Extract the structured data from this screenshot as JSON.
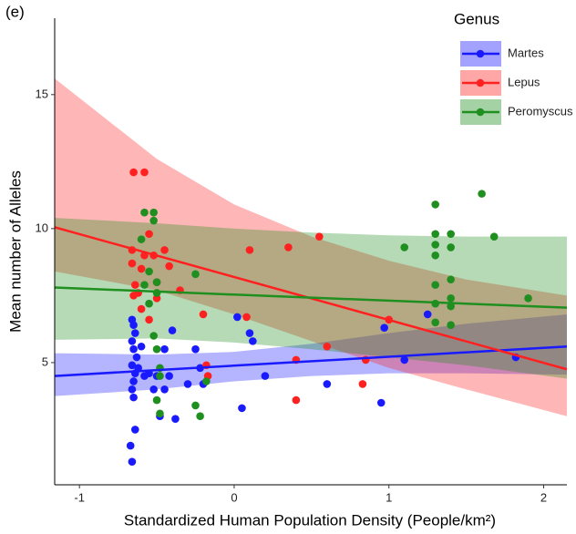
{
  "chart_data": {
    "type": "scatter",
    "panel_label": "(e)",
    "x_label": "Standardized Human Population Density (People/km²)",
    "y_label": "Mean number of Alleles",
    "xlim": [
      -1.16,
      2.15
    ],
    "ylim": [
      0.44,
      17.85
    ],
    "xticks": [
      -1,
      0,
      1,
      2
    ],
    "yticks": [
      5,
      10,
      15
    ],
    "grid": false,
    "legend": "top-right",
    "legend_title": "Genus",
    "series": [
      {
        "name": "Martes",
        "color": "#1a1aff",
        "x": [
          -0.66,
          -0.67,
          -0.64,
          -0.65,
          -0.66,
          -0.65,
          -0.64,
          -0.66,
          -0.63,
          -0.65,
          -0.66,
          -0.64,
          -0.65,
          -0.66,
          -0.62,
          -0.6,
          -0.55,
          -0.5,
          -0.48,
          -0.52,
          -0.45,
          -0.42,
          -0.4,
          -0.38,
          -0.3,
          -0.25,
          -0.22,
          -0.2,
          0.02,
          0.05,
          0.1,
          0.12,
          0.2,
          0.6,
          0.95,
          0.97,
          1.1,
          1.25,
          1.82,
          -0.45,
          -0.58
        ],
        "values": [
          1.3,
          1.9,
          2.5,
          3.7,
          4.0,
          4.3,
          4.6,
          4.9,
          5.2,
          5.5,
          5.8,
          6.1,
          6.4,
          6.6,
          4.8,
          5.6,
          4.6,
          4.5,
          3.0,
          4.0,
          5.5,
          4.5,
          6.2,
          2.9,
          4.2,
          5.5,
          4.8,
          4.2,
          6.7,
          3.3,
          6.1,
          5.8,
          4.5,
          4.2,
          3.5,
          6.3,
          5.1,
          6.8,
          5.2,
          4.0,
          4.5
        ],
        "fit": {
          "x": [
            -1.16,
            2.15
          ],
          "values": [
            4.5,
            5.6
          ]
        },
        "band": {
          "x": [
            -1.16,
            -0.5,
            0,
            0.5,
            1,
            1.5,
            2.15
          ],
          "lower": [
            3.75,
            4.0,
            4.3,
            4.5,
            4.6,
            4.6,
            4.55
          ],
          "upper": [
            5.35,
            5.3,
            5.4,
            5.7,
            6.1,
            6.45,
            6.8
          ]
        }
      },
      {
        "name": "Lepus",
        "color": "#ff2020",
        "x": [
          -0.65,
          -0.58,
          -0.66,
          -0.66,
          -0.64,
          -0.65,
          -0.6,
          -0.58,
          -0.55,
          -0.52,
          -0.5,
          -0.6,
          -0.55,
          -0.62,
          -0.45,
          -0.42,
          -0.35,
          -0.2,
          -0.18,
          -0.17,
          0.08,
          0.1,
          0.35,
          0.4,
          0.55,
          0.6,
          0.85,
          0.83,
          1.0,
          0.4,
          -0.5
        ],
        "values": [
          12.1,
          12.1,
          9.2,
          8.7,
          7.9,
          7.5,
          8.5,
          9.0,
          9.8,
          9.0,
          8.0,
          7.0,
          6.6,
          7.6,
          9.2,
          8.6,
          7.7,
          6.8,
          4.9,
          4.5,
          6.7,
          9.2,
          9.3,
          3.6,
          9.7,
          5.6,
          5.1,
          4.2,
          6.6,
          5.1,
          7.4
        ],
        "fit": {
          "x": [
            -1.16,
            2.15
          ],
          "values": [
            10.05,
            4.75
          ]
        },
        "band": {
          "x": [
            -1.16,
            -0.5,
            0,
            0.5,
            1,
            1.5,
            2.15
          ],
          "lower": [
            8.4,
            7.7,
            6.8,
            5.8,
            4.8,
            4.0,
            3.0
          ],
          "upper": [
            15.6,
            12.6,
            10.9,
            9.7,
            8.8,
            8.1,
            7.5
          ]
        }
      },
      {
        "name": "Peromyscus",
        "color": "#1f8f1f",
        "x": [
          -0.58,
          -0.52,
          -0.52,
          -0.55,
          -0.6,
          -0.58,
          -0.5,
          -0.5,
          -0.55,
          -0.52,
          -0.5,
          -0.48,
          -0.5,
          -0.48,
          -0.48,
          -0.25,
          -0.22,
          -0.25,
          -0.18,
          1.1,
          1.3,
          1.3,
          1.3,
          1.3,
          1.3,
          1.3,
          1.4,
          1.4,
          1.4,
          1.4,
          1.4,
          1.4,
          1.6,
          1.68,
          1.9,
          1.3
        ],
        "values": [
          10.6,
          10.6,
          10.3,
          8.4,
          9.6,
          7.9,
          8.0,
          7.6,
          7.2,
          6.0,
          5.5,
          4.5,
          3.6,
          3.1,
          4.8,
          3.4,
          3.0,
          8.3,
          4.3,
          9.3,
          10.9,
          9.8,
          9.4,
          9.0,
          7.9,
          6.5,
          9.8,
          9.3,
          8.1,
          7.4,
          7.1,
          6.4,
          11.3,
          9.7,
          7.4,
          7.2
        ],
        "fit": {
          "x": [
            -1.16,
            2.15
          ],
          "values": [
            7.8,
            7.05
          ]
        },
        "band": {
          "x": [
            -1.16,
            -0.5,
            0,
            0.5,
            1,
            1.5,
            2.15
          ],
          "lower": [
            5.85,
            5.9,
            5.75,
            5.5,
            5.2,
            4.9,
            4.4
          ],
          "upper": [
            10.4,
            10.2,
            10.0,
            9.85,
            9.75,
            9.7,
            9.7
          ]
        }
      }
    ]
  }
}
